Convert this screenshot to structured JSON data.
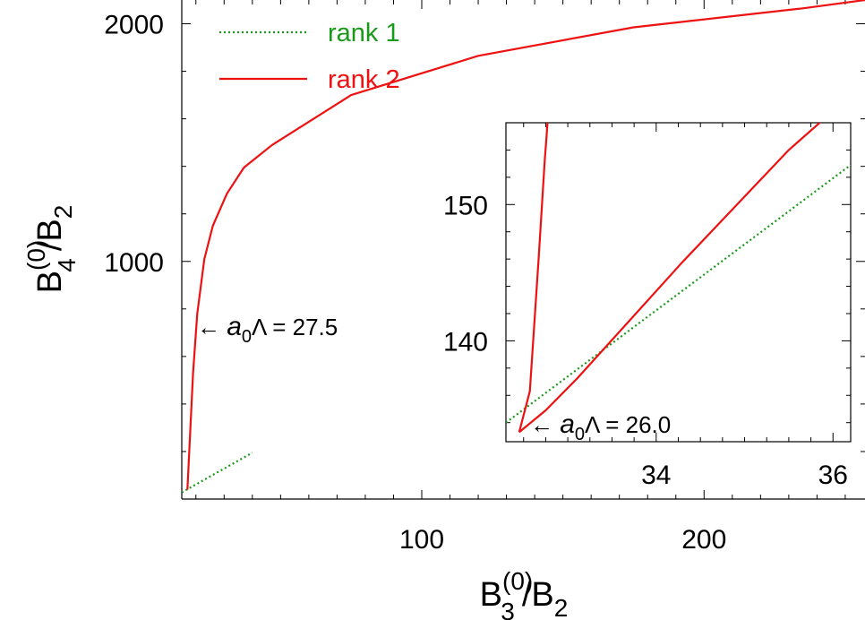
{
  "chart_data": [
    {
      "type": "line",
      "role": "main",
      "xlabel": {
        "base": "B",
        "sub": "3",
        "sup": "(0)",
        "rest": "/B",
        "rest_sub": "2"
      },
      "ylabel": {
        "base": "B",
        "sub": "4",
        "sup": "(0)",
        "rest": "/B",
        "rest_sub": "2"
      },
      "xlim": [
        15,
        257
      ],
      "ylim": [
        0,
        2100
      ],
      "x_ticks": [
        100,
        200
      ],
      "y_ticks": [
        1000,
        2000
      ],
      "x_tick_labels": [
        "100",
        "200"
      ],
      "y_tick_labels": [
        "1000",
        "2000"
      ],
      "legend_position": "top-left",
      "series": [
        {
          "name": "rank 1",
          "style": "dotted",
          "color": "#1a9a1a",
          "x": [
            15,
            40
          ],
          "y": [
            28,
            195
          ]
        },
        {
          "name": "rank 2",
          "style": "solid",
          "color": "#ee1111",
          "x": [
            17,
            19,
            20.5,
            23,
            26,
            31,
            37,
            47,
            75,
            120,
            175,
            235,
            257
          ],
          "y": [
            40,
            530,
            780,
            1010,
            1150,
            1285,
            1395,
            1490,
            1700,
            1865,
            1985,
            2065,
            2100
          ]
        }
      ],
      "annotations": [
        {
          "text_italic": "a",
          "text_sub": "0",
          "text": "Λ = 27.5",
          "arrow": "←"
        }
      ]
    },
    {
      "type": "line",
      "role": "inset",
      "xlim": [
        32.3,
        36.2
      ],
      "ylim": [
        132.6,
        156.0
      ],
      "x_ticks": [
        34,
        36
      ],
      "y_ticks": [
        140,
        150
      ],
      "x_tick_labels": [
        "34",
        "36"
      ],
      "y_tick_labels": [
        "140",
        "150"
      ],
      "series": [
        {
          "name": "rank 1",
          "style": "dotted",
          "color": "#1a9a1a",
          "x": [
            32.3,
            36.2
          ],
          "y": [
            134.0,
            152.9
          ]
        },
        {
          "name": "rank 2",
          "style": "solid",
          "color": "#ee1111",
          "upper_branch": {
            "x": [
              32.45,
              32.57,
              32.67,
              32.74,
              32.76,
              32.77
            ],
            "y": [
              133.3,
              136.3,
              146.0,
              153.3,
              155.0,
              156.0
            ]
          },
          "lower_branch": {
            "x": [
              32.45,
              32.75,
              33.1,
              33.7,
              34.3,
              34.9,
              35.5,
              36.2
            ],
            "y": [
              133.3,
              134.9,
              137.2,
              141.5,
              145.8,
              149.9,
              154.0,
              158.0
            ]
          }
        }
      ],
      "annotations": [
        {
          "text_italic": "a",
          "text_sub": "0",
          "text": "Λ = 26.0",
          "arrow": "←"
        }
      ]
    }
  ]
}
